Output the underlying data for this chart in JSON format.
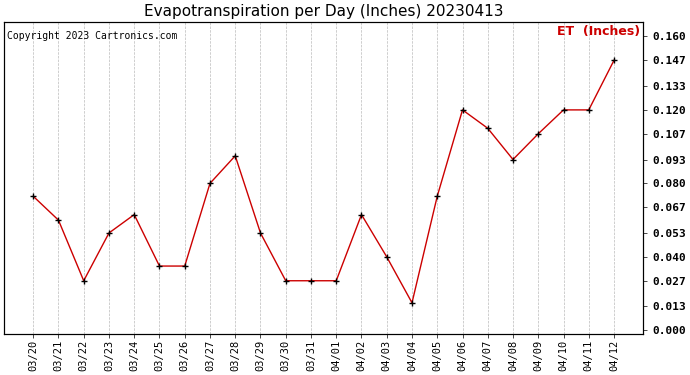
{
  "title": "Evapotranspiration per Day (Inches) 20230413",
  "copyright": "Copyright 2023 Cartronics.com",
  "legend_label": "ET  (Inches)",
  "x_labels": [
    "03/20",
    "03/21",
    "03/22",
    "03/23",
    "03/24",
    "03/25",
    "03/26",
    "03/27",
    "03/28",
    "03/29",
    "03/30",
    "03/31",
    "04/01",
    "04/02",
    "04/03",
    "04/04",
    "04/05",
    "04/06",
    "04/07",
    "04/08",
    "04/09",
    "04/10",
    "04/11",
    "04/12"
  ],
  "y_values": [
    0.073,
    0.06,
    0.027,
    0.053,
    0.063,
    0.035,
    0.035,
    0.08,
    0.095,
    0.053,
    0.027,
    0.027,
    0.027,
    0.063,
    0.04,
    0.015,
    0.073,
    0.12,
    0.11,
    0.093,
    0.107,
    0.12,
    0.12,
    0.147
  ],
  "line_color": "#cc0000",
  "marker_color": "#000000",
  "background_color": "#ffffff",
  "grid_color": "#bbbbbb",
  "ylim": [
    -0.002,
    0.168
  ],
  "yticks": [
    0.0,
    0.013,
    0.027,
    0.04,
    0.053,
    0.067,
    0.08,
    0.093,
    0.107,
    0.12,
    0.133,
    0.147,
    0.16
  ],
  "title_fontsize": 11,
  "copyright_fontsize": 7,
  "legend_fontsize": 9,
  "tick_fontsize": 7.5,
  "right_ytick_fontsize": 8
}
